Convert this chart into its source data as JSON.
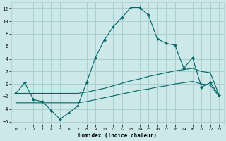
{
  "xlabel": "Humidex (Indice chaleur)",
  "bg_color": "#cce8e8",
  "grid_color": "#aacfcf",
  "line_color": "#006666",
  "xlim": [
    -0.5,
    23.5
  ],
  "ylim": [
    -6.5,
    13.0
  ],
  "yticks": [
    -6,
    -4,
    -2,
    0,
    2,
    4,
    6,
    8,
    10,
    12
  ],
  "xticks": [
    0,
    1,
    2,
    3,
    4,
    5,
    6,
    7,
    8,
    9,
    10,
    11,
    12,
    13,
    14,
    15,
    16,
    17,
    18,
    19,
    20,
    21,
    22,
    23
  ],
  "x": [
    0,
    1,
    2,
    3,
    4,
    5,
    6,
    7,
    8,
    9,
    10,
    11,
    12,
    13,
    14,
    15,
    16,
    17,
    18,
    19,
    20,
    21,
    22,
    23
  ],
  "y_main": [
    -1.5,
    0.2,
    -2.5,
    -2.8,
    -4.2,
    -5.6,
    -4.6,
    -3.5,
    0.2,
    4.2,
    7.0,
    9.1,
    10.6,
    12.2,
    12.2,
    11.0,
    7.2,
    6.5,
    6.2,
    2.5,
    4.2,
    -0.5,
    0.2,
    -1.8
  ],
  "y_upper": [
    -1.5,
    -1.5,
    -1.5,
    -1.5,
    -1.5,
    -1.5,
    -1.5,
    -1.5,
    -1.3,
    -1.0,
    -0.7,
    -0.3,
    0.1,
    0.5,
    0.8,
    1.2,
    1.5,
    1.8,
    2.1,
    2.3,
    2.5,
    2.0,
    1.8,
    -1.8
  ],
  "y_lower": [
    -3.0,
    -3.0,
    -3.0,
    -3.0,
    -3.0,
    -3.0,
    -3.0,
    -3.0,
    -2.8,
    -2.5,
    -2.2,
    -1.9,
    -1.6,
    -1.3,
    -1.0,
    -0.8,
    -0.5,
    -0.3,
    0.0,
    0.2,
    0.4,
    0.0,
    -0.2,
    -2.0
  ]
}
